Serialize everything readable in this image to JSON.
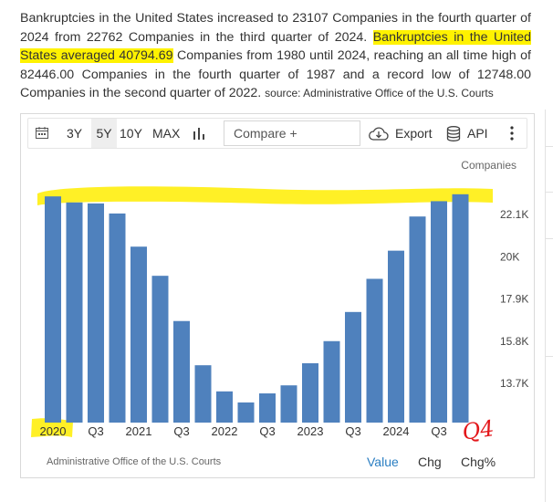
{
  "description": {
    "part1": "Bankruptcies in the United States increased to 23107 Companies in the fourth quarter of 2024 from 22762 Companies in the third quarter of 2024. ",
    "highlight": "Bankruptcies in the United States averaged 40794.69",
    "part2": " Companies from 1980 until 2024, reaching an all time high of 82446.00 Companies in the fourth quarter of 1987 and a record low of 12748.00 Companies in the second quarter of 2022. ",
    "source": "source: Administrative Office of the U.S. Courts"
  },
  "toolbar": {
    "calendar_icon": "calendar-icon",
    "ranges": [
      "3Y",
      "5Y",
      "10Y",
      "MAX"
    ],
    "active_range": "5Y",
    "chart_type_icon": "bar-chart-icon",
    "compare_label": "Compare +",
    "export_label": "Export",
    "export_icon": "cloud-download-icon",
    "api_label": "API",
    "api_icon": "database-icon",
    "more_icon": "vertical-dots-icon"
  },
  "chart_data": {
    "type": "bar",
    "unit_label": "Companies",
    "categories": [
      "2020 Q1",
      "2020 Q2",
      "2020 Q3",
      "2020 Q4",
      "2021 Q1",
      "2021 Q2",
      "2021 Q3",
      "2021 Q4",
      "2022 Q1",
      "2022 Q2",
      "2022 Q3",
      "2022 Q4",
      "2023 Q1",
      "2023 Q2",
      "2023 Q3",
      "2023 Q4",
      "2024 Q1",
      "2024 Q2",
      "2024 Q3",
      "2024 Q4"
    ],
    "values": [
      23000,
      22700,
      22650,
      22150,
      20500,
      19050,
      16800,
      14600,
      13300,
      12750,
      13200,
      13600,
      14700,
      15800,
      17250,
      18900,
      20300,
      22000,
      22762,
      23107
    ],
    "x_tick_labels": [
      "2020",
      "Q3",
      "2021",
      "Q3",
      "2022",
      "Q3",
      "2023",
      "Q3",
      "2024",
      "Q3"
    ],
    "y_ticks": [
      13700,
      15800,
      17900,
      20000,
      22100
    ],
    "y_tick_labels": [
      "13.7K",
      "15.8K",
      "17.9K",
      "20K",
      "22.1K"
    ],
    "ylim": [
      12000,
      23500
    ],
    "bar_color": "#4f81bd",
    "grid": false
  },
  "annotation": {
    "q4_text": "Q4",
    "ink_color": "#e3171b",
    "marker_color": "#ffed00"
  },
  "footer": {
    "source": "Administrative Office of the U.S. Courts",
    "tabs": [
      "Value",
      "Chg",
      "Chg%"
    ],
    "active_tab": "Value"
  }
}
